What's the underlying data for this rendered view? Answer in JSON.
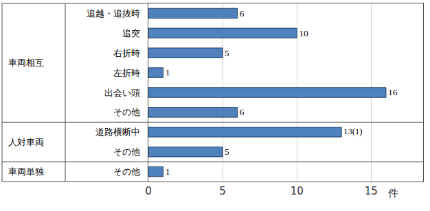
{
  "chart_data": {
    "type": "bar",
    "orientation": "horizontal",
    "categories": [
      "追越・追抜時",
      "追突",
      "右折時",
      "左折時",
      "出会い頭",
      "その他",
      "道路横断中",
      "その他",
      "その他"
    ],
    "category_groups": [
      "車両相互",
      "車両相互",
      "車両相互",
      "車両相互",
      "車両相互",
      "車両相互",
      "人対車両",
      "人対車両",
      "車両単独"
    ],
    "values": [
      6,
      10,
      5,
      1,
      16,
      6,
      13,
      5,
      1
    ],
    "value_labels": [
      "6",
      "10",
      "5",
      "1",
      "16",
      "6",
      "13(1)",
      "5",
      "1"
    ],
    "data_labels": true,
    "color": "#4f81bd",
    "xlabel": "件",
    "xlim": [
      0,
      18.5
    ],
    "xticks": [
      0,
      5,
      10,
      15
    ],
    "grid": true
  }
}
